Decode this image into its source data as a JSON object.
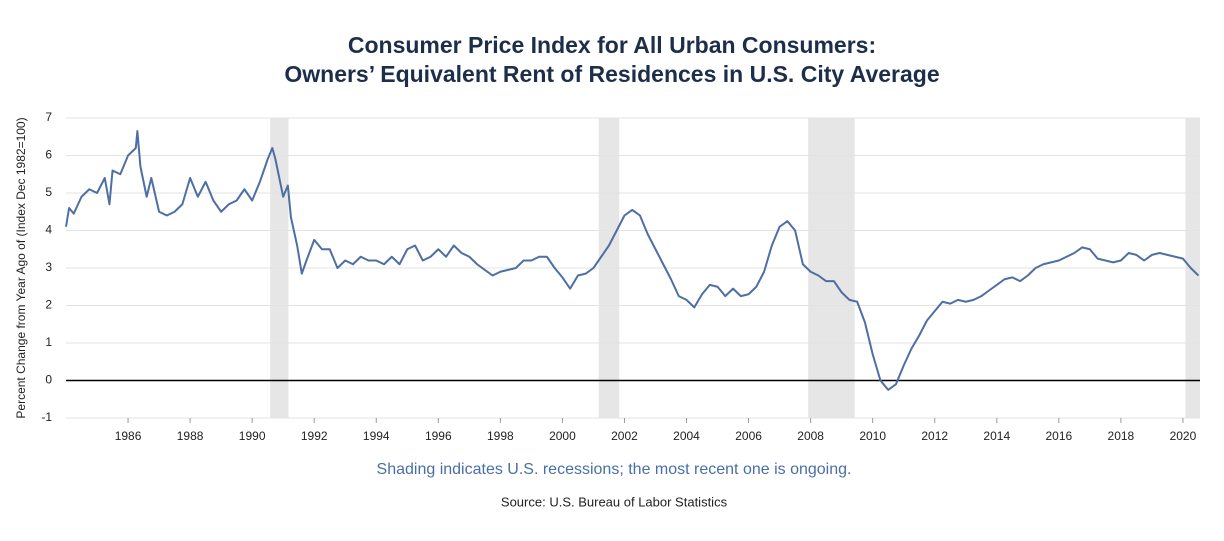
{
  "chart_data": {
    "type": "line",
    "title": [
      "Consumer Price Index for All Urban Consumers:",
      "Owners’ Equivalent Rent of Residences in U.S. City Average"
    ],
    "ylabel": "Percent Change from Year Ago of (Index Dec 1982=100)",
    "note": "Shading indicates U.S. recessions; the most recent one is ongoing.",
    "source": "Source: U.S. Bureau of Labor Statistics",
    "xlim": [
      1984,
      2020.55
    ],
    "xticks": [
      1986,
      1988,
      1990,
      1992,
      1994,
      1996,
      1998,
      2000,
      2002,
      2004,
      2006,
      2008,
      2010,
      2012,
      2014,
      2016,
      2018,
      2020
    ],
    "ylim": [
      -1,
      7
    ],
    "yticks": [
      -1,
      0,
      1,
      2,
      3,
      4,
      5,
      6,
      7
    ],
    "grid": true,
    "recessions": [
      [
        1990.58,
        1991.17
      ],
      [
        2001.17,
        2001.83
      ],
      [
        2007.92,
        2009.42
      ],
      [
        2020.08,
        2020.55
      ]
    ],
    "recession_color": "#e6e6e6",
    "x": [
      1984.0,
      1984.1,
      1984.25,
      1984.5,
      1984.75,
      1985.0,
      1985.25,
      1985.4,
      1985.5,
      1985.75,
      1986.0,
      1986.25,
      1986.3,
      1986.4,
      1986.6,
      1986.75,
      1987.0,
      1987.25,
      1987.5,
      1987.75,
      1988.0,
      1988.25,
      1988.5,
      1988.75,
      1989.0,
      1989.25,
      1989.5,
      1989.75,
      1990.0,
      1990.25,
      1990.5,
      1990.65,
      1990.75,
      1991.0,
      1991.15,
      1991.25,
      1991.45,
      1991.6,
      1991.75,
      1992.0,
      1992.25,
      1992.5,
      1992.75,
      1993.0,
      1993.25,
      1993.5,
      1993.75,
      1994.0,
      1994.25,
      1994.5,
      1994.75,
      1995.0,
      1995.25,
      1995.5,
      1995.75,
      1996.0,
      1996.25,
      1996.5,
      1996.75,
      1997.0,
      1997.25,
      1997.5,
      1997.75,
      1998.0,
      1998.25,
      1998.5,
      1998.75,
      1999.0,
      1999.25,
      1999.5,
      1999.75,
      2000.0,
      2000.25,
      2000.5,
      2000.75,
      2001.0,
      2001.25,
      2001.5,
      2001.75,
      2002.0,
      2002.25,
      2002.5,
      2002.75,
      2003.0,
      2003.25,
      2003.5,
      2003.75,
      2004.0,
      2004.25,
      2004.5,
      2004.75,
      2005.0,
      2005.25,
      2005.5,
      2005.75,
      2006.0,
      2006.25,
      2006.5,
      2006.75,
      2007.0,
      2007.25,
      2007.5,
      2007.75,
      2008.0,
      2008.25,
      2008.5,
      2008.75,
      2009.0,
      2009.25,
      2009.5,
      2009.75,
      2010.0,
      2010.25,
      2010.5,
      2010.75,
      2011.0,
      2011.25,
      2011.5,
      2011.75,
      2012.0,
      2012.25,
      2012.5,
      2012.75,
      2013.0,
      2013.25,
      2013.5,
      2013.75,
      2014.0,
      2014.25,
      2014.5,
      2014.75,
      2015.0,
      2015.25,
      2015.5,
      2015.75,
      2016.0,
      2016.25,
      2016.5,
      2016.75,
      2017.0,
      2017.25,
      2017.5,
      2017.75,
      2018.0,
      2018.25,
      2018.5,
      2018.75,
      2019.0,
      2019.25,
      2019.5,
      2019.75,
      2020.0,
      2020.25,
      2020.5
    ],
    "series": [
      {
        "name": "Owners’ Equivalent Rent",
        "color": "#4e6fa3",
        "values": [
          4.1,
          4.6,
          4.45,
          4.9,
          5.1,
          5.0,
          5.4,
          4.7,
          5.6,
          5.5,
          6.0,
          6.2,
          6.65,
          5.7,
          4.9,
          5.4,
          4.5,
          4.4,
          4.5,
          4.7,
          5.4,
          4.9,
          5.3,
          4.8,
          4.5,
          4.7,
          4.8,
          5.1,
          4.8,
          5.3,
          5.9,
          6.2,
          5.9,
          4.9,
          5.2,
          4.35,
          3.6,
          2.85,
          3.2,
          3.75,
          3.5,
          3.5,
          3.0,
          3.2,
          3.1,
          3.3,
          3.2,
          3.2,
          3.1,
          3.3,
          3.1,
          3.5,
          3.6,
          3.2,
          3.3,
          3.5,
          3.3,
          3.6,
          3.4,
          3.3,
          3.1,
          2.95,
          2.8,
          2.9,
          2.95,
          3.0,
          3.2,
          3.2,
          3.3,
          3.3,
          3.0,
          2.75,
          2.45,
          2.8,
          2.85,
          3.0,
          3.3,
          3.6,
          4.0,
          4.4,
          4.55,
          4.4,
          3.9,
          3.5,
          3.1,
          2.7,
          2.25,
          2.15,
          1.95,
          2.3,
          2.55,
          2.5,
          2.25,
          2.45,
          2.25,
          2.3,
          2.5,
          2.9,
          3.6,
          4.1,
          4.25,
          4.0,
          3.1,
          2.9,
          2.8,
          2.65,
          2.65,
          2.35,
          2.15,
          2.1,
          1.55,
          0.7,
          0.0,
          -0.25,
          -0.1,
          0.4,
          0.85,
          1.2,
          1.6,
          1.85,
          2.1,
          2.05,
          2.15,
          2.1,
          2.15,
          2.25,
          2.4,
          2.55,
          2.7,
          2.75,
          2.65,
          2.8,
          3.0,
          3.1,
          3.15,
          3.2,
          3.3,
          3.4,
          3.55,
          3.5,
          3.25,
          3.2,
          3.15,
          3.2,
          3.4,
          3.35,
          3.2,
          3.35,
          3.4,
          3.35,
          3.3,
          3.25,
          3.0,
          2.8
        ]
      }
    ]
  }
}
